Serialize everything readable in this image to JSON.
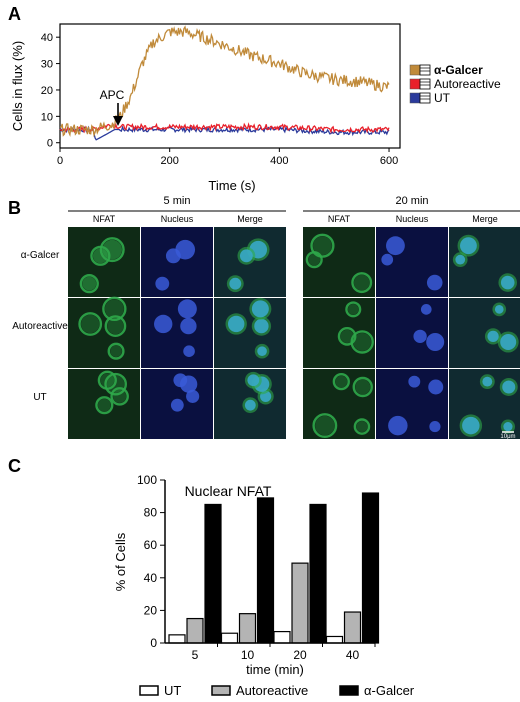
{
  "panel_labels": {
    "a": "A",
    "b": "B",
    "c": "C"
  },
  "panel_a": {
    "arrow_label": "APC",
    "legend": [
      "α-Galcer",
      "Autoreactive",
      "UT"
    ]
  },
  "panel_b": {
    "groups": [
      {
        "time_label": "5 min",
        "columns": [
          "NFAT",
          "Nucleus",
          "Merge"
        ]
      },
      {
        "time_label": "20 min",
        "columns": [
          "NFAT",
          "Nucleus",
          "Merge"
        ]
      }
    ],
    "row_labels": [
      "α-Galcer",
      "Autoreactive",
      "UT"
    ],
    "scale_bar": "10μm"
  },
  "colors": {
    "galcer_line": "#c08a3a",
    "autoreactive_line": "#e8202a",
    "ut_line": "#2b3b9c",
    "nfat_green": "#2fa84a",
    "nucleus_blue": "#3a5ad8"
  },
  "chart_data": [
    {
      "type": "line",
      "title": "",
      "xlabel": "Time (s)",
      "ylabel": "Cells in flux (%)",
      "xlim": [
        0,
        620
      ],
      "ylim": [
        -2,
        45
      ],
      "xticks": [
        0,
        200,
        400,
        600
      ],
      "yticks": [
        0,
        10,
        20,
        30,
        40
      ],
      "annotations": [
        {
          "text": "APC",
          "x": 95,
          "y": 9
        }
      ],
      "legend_position": "right",
      "series": [
        {
          "name": "α-Galcer",
          "x": [
            0,
            60,
            95,
            110,
            130,
            150,
            170,
            200,
            230,
            260,
            300,
            350,
            400,
            450,
            500,
            550,
            600
          ],
          "y": [
            5,
            5,
            7,
            10,
            18,
            30,
            38,
            42,
            42,
            40,
            37,
            33,
            30,
            26,
            24,
            23,
            21
          ]
        },
        {
          "name": "Autoreactive",
          "x": [
            0,
            60,
            95,
            110,
            200,
            300,
            400,
            500,
            600
          ],
          "y": [
            5,
            5,
            7,
            6,
            6,
            6,
            6,
            5,
            5
          ]
        },
        {
          "name": "UT",
          "x": [
            0,
            60,
            65,
            100,
            110,
            200,
            300,
            400,
            500,
            600
          ],
          "y": [
            5,
            5,
            1,
            5,
            5,
            5,
            5,
            5,
            4,
            4
          ]
        }
      ]
    },
    {
      "type": "bar",
      "title": "Nuclear NFAT",
      "xlabel": "time (min)",
      "ylabel": "% of Cells",
      "ylim": [
        0,
        100
      ],
      "yticks": [
        0,
        20,
        40,
        60,
        80,
        100
      ],
      "categories": [
        "5",
        "10",
        "20",
        "40"
      ],
      "legend_position": "bottom",
      "series": [
        {
          "name": "UT",
          "values": [
            5,
            6,
            7,
            4
          ],
          "color": "#ffffff"
        },
        {
          "name": "Autoreactive",
          "values": [
            15,
            18,
            49,
            19
          ],
          "color": "#b4b4b4"
        },
        {
          "name": "α-Galcer",
          "values": [
            85,
            89,
            85,
            92
          ],
          "color": "#000000"
        }
      ]
    }
  ]
}
